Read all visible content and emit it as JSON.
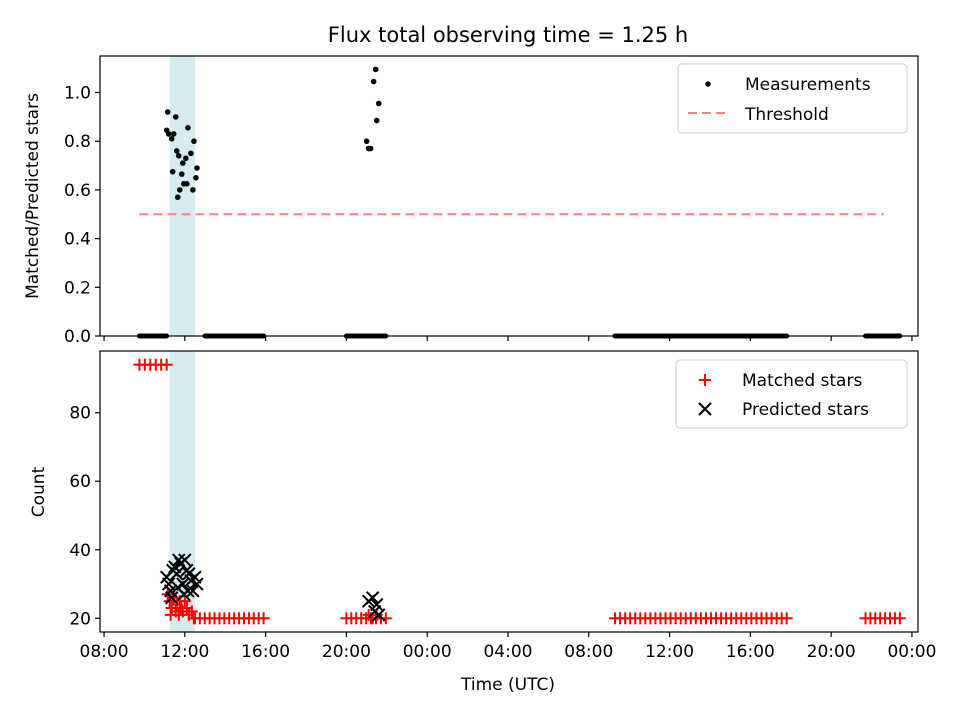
{
  "figure": {
    "title": "Flux total observing time = 1.25 h",
    "xlabel": "Time (UTC)",
    "x_tick_labels": [
      "08:00",
      "12:00",
      "16:00",
      "20:00",
      "00:00",
      "04:00",
      "08:00",
      "12:00",
      "16:00",
      "20:00",
      "00:00"
    ]
  },
  "colors": {
    "measurement": "#000000",
    "threshold": "#ff7f7f",
    "matched": "#ff0000",
    "predicted": "#000000",
    "highlight": "#add8e6"
  },
  "chart_data": [
    {
      "type": "scatter",
      "panel": "top",
      "ylabel": "Matched/Predicted stars",
      "x_unit": "hours since 08:00 on first day",
      "xlim": [
        7.8,
        48.3
      ],
      "ylim": [
        0,
        1.15
      ],
      "y_ticks": [
        "0.0",
        "0.2",
        "0.4",
        "0.6",
        "0.8",
        "1.0"
      ],
      "highlight_span": [
        11.25,
        12.5
      ],
      "legend": {
        "position": "top-right",
        "measurements": "Measurements",
        "threshold": "Threshold"
      },
      "threshold": {
        "value": 0.5,
        "x_range": [
          9.75,
          46.6
        ]
      },
      "measurements": [
        [
          11.1,
          0.845
        ],
        [
          11.2,
          0.83
        ],
        [
          11.15,
          0.92
        ],
        [
          11.35,
          0.81
        ],
        [
          11.45,
          0.83
        ],
        [
          11.55,
          0.9
        ],
        [
          11.6,
          0.76
        ],
        [
          11.7,
          0.74
        ],
        [
          11.4,
          0.675
        ],
        [
          11.85,
          0.665
        ],
        [
          11.9,
          0.71
        ],
        [
          12.05,
          0.73
        ],
        [
          12.15,
          0.855
        ],
        [
          11.65,
          0.57
        ],
        [
          11.75,
          0.6
        ],
        [
          11.95,
          0.625
        ],
        [
          12.1,
          0.625
        ],
        [
          12.3,
          0.75
        ],
        [
          12.45,
          0.8
        ],
        [
          12.55,
          0.65
        ],
        [
          12.6,
          0.69
        ],
        [
          12.4,
          0.6
        ],
        [
          21.0,
          0.8
        ],
        [
          21.1,
          0.77
        ],
        [
          21.2,
          0.77
        ],
        [
          21.35,
          1.045
        ],
        [
          21.45,
          1.095
        ],
        [
          21.6,
          0.955
        ],
        [
          21.5,
          0.885
        ]
      ],
      "zero_segments": [
        [
          9.75,
          11.1
        ],
        [
          13.0,
          15.9
        ],
        [
          20.0,
          21.95
        ],
        [
          33.3,
          41.8
        ],
        [
          45.7,
          47.4
        ]
      ]
    },
    {
      "type": "scatter",
      "panel": "bottom",
      "ylabel": "Count",
      "x_unit": "hours since 08:00 on first day",
      "xlim": [
        7.8,
        48.3
      ],
      "ylim": [
        16,
        98
      ],
      "y_ticks": [
        "20",
        "40",
        "60",
        "80"
      ],
      "highlight_span": [
        11.25,
        12.5
      ],
      "legend": {
        "position": "top-right",
        "matched": "Matched stars",
        "predicted": "Predicted stars"
      },
      "matched_segments": [
        {
          "x_range": [
            9.75,
            11.1
          ],
          "y": 94
        },
        {
          "x_range": [
            12.5,
            15.9
          ],
          "y": 20
        },
        {
          "x_range": [
            20.0,
            21.95
          ],
          "y": 20
        },
        {
          "x_range": [
            33.3,
            41.8
          ],
          "y": 20
        },
        {
          "x_range": [
            45.7,
            47.4
          ],
          "y": 20
        }
      ],
      "matched_points": [
        [
          11.15,
          27
        ],
        [
          11.25,
          25
        ],
        [
          11.35,
          23
        ],
        [
          11.45,
          26
        ],
        [
          11.55,
          22
        ],
        [
          11.6,
          24
        ],
        [
          11.7,
          21
        ],
        [
          11.8,
          23
        ],
        [
          11.9,
          22
        ],
        [
          12.0,
          25
        ],
        [
          12.1,
          23
        ],
        [
          12.2,
          21
        ],
        [
          12.35,
          22
        ],
        [
          12.45,
          20
        ],
        [
          11.3,
          21
        ],
        [
          11.75,
          25
        ],
        [
          21.1,
          21
        ],
        [
          21.3,
          20
        ],
        [
          21.5,
          21
        ]
      ],
      "predicted_points": [
        [
          11.1,
          32
        ],
        [
          11.2,
          30
        ],
        [
          11.3,
          28
        ],
        [
          11.4,
          34
        ],
        [
          11.5,
          35
        ],
        [
          11.6,
          33
        ],
        [
          11.7,
          37
        ],
        [
          11.8,
          36
        ],
        [
          11.9,
          30
        ],
        [
          12.0,
          37
        ],
        [
          12.1,
          34
        ],
        [
          12.2,
          33
        ],
        [
          12.3,
          31
        ],
        [
          12.4,
          28
        ],
        [
          12.5,
          32
        ],
        [
          12.6,
          30
        ],
        [
          11.35,
          26
        ],
        [
          11.65,
          29
        ],
        [
          11.95,
          27
        ],
        [
          12.15,
          28
        ],
        [
          21.1,
          25
        ],
        [
          21.3,
          26
        ],
        [
          21.4,
          22
        ],
        [
          21.5,
          24
        ],
        [
          21.6,
          21
        ]
      ]
    }
  ]
}
